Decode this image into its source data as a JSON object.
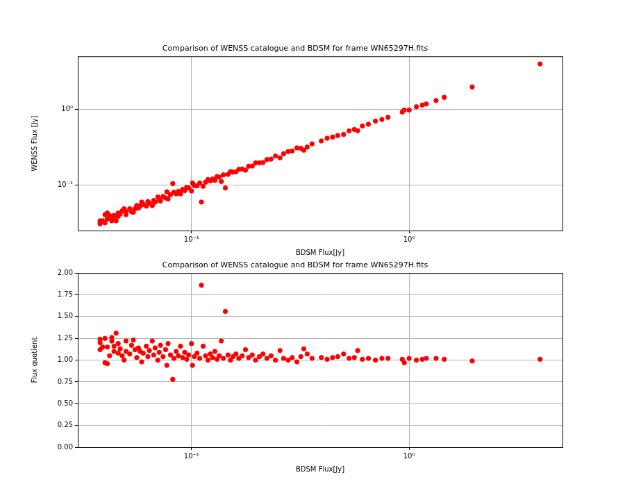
{
  "chart_data": [
    {
      "type": "scatter",
      "title": "Comparison of WENSS catalogue and BDSM for frame WN65297H.fits",
      "x_label": "BDSM Flux[Jy]",
      "y_label": "WENSS Flux [Jy]",
      "log": true,
      "grid": true,
      "color": "#ff0000",
      "marker": "circle",
      "xlim": [
        0.03,
        5.07
      ],
      "ylim": [
        0.0253,
        4.98
      ],
      "xticks": [
        {
          "value": 0.1,
          "label": "10⁻¹"
        },
        {
          "value": 1,
          "label": "10⁰"
        }
      ],
      "yticks": [
        {
          "value": 0.1,
          "label": "10⁻¹"
        },
        {
          "value": 1,
          "label": "10⁰"
        }
      ],
      "x": [
        0.038,
        0.038,
        0.038,
        0.039,
        0.04,
        0.04,
        0.041,
        0.041,
        0.042,
        0.043,
        0.043,
        0.044,
        0.044,
        0.045,
        0.046,
        0.046,
        0.047,
        0.048,
        0.049,
        0.05,
        0.05,
        0.052,
        0.053,
        0.054,
        0.055,
        0.056,
        0.057,
        0.058,
        0.059,
        0.06,
        0.062,
        0.063,
        0.064,
        0.066,
        0.067,
        0.068,
        0.07,
        0.071,
        0.072,
        0.074,
        0.076,
        0.077,
        0.078,
        0.08,
        0.082,
        0.083,
        0.085,
        0.087,
        0.089,
        0.091,
        0.093,
        0.095,
        0.097,
        0.1,
        0.101,
        0.103,
        0.106,
        0.109,
        0.111,
        0.113,
        0.116,
        0.119,
        0.122,
        0.125,
        0.128,
        0.131,
        0.134,
        0.137,
        0.14,
        0.143,
        0.147,
        0.151,
        0.155,
        0.16,
        0.165,
        0.171,
        0.177,
        0.183,
        0.19,
        0.197,
        0.205,
        0.213,
        0.222,
        0.232,
        0.243,
        0.255,
        0.265,
        0.278,
        0.29,
        0.305,
        0.318,
        0.328,
        0.34,
        0.358,
        0.395,
        0.42,
        0.445,
        0.47,
        0.5,
        0.53,
        0.56,
        0.58,
        0.61,
        0.65,
        0.7,
        0.75,
        0.8,
        0.93,
        0.95,
        1.0,
        1.08,
        1.15,
        1.2,
        1.33,
        1.45,
        1.95,
        4.0
      ],
      "values": [
        0.031,
        0.032,
        0.034,
        0.034,
        0.041,
        0.032,
        0.043,
        0.036,
        0.04,
        0.034,
        0.035,
        0.04,
        0.038,
        0.034,
        0.043,
        0.039,
        0.042,
        0.046,
        0.049,
        0.041,
        0.045,
        0.049,
        0.045,
        0.044,
        0.049,
        0.054,
        0.05,
        0.053,
        0.06,
        0.056,
        0.053,
        0.061,
        0.058,
        0.054,
        0.063,
        0.06,
        0.07,
        0.065,
        0.062,
        0.071,
        0.068,
        0.082,
        0.066,
        0.075,
        0.105,
        0.081,
        0.077,
        0.083,
        0.077,
        0.088,
        0.085,
        0.094,
        0.092,
        0.084,
        0.107,
        0.099,
        0.098,
        0.107,
        0.06,
        0.097,
        0.11,
        0.119,
        0.114,
        0.121,
        0.116,
        0.13,
        0.128,
        0.112,
        0.137,
        0.092,
        0.139,
        0.151,
        0.149,
        0.15,
        0.162,
        0.163,
        0.158,
        0.178,
        0.179,
        0.197,
        0.197,
        0.199,
        0.218,
        0.221,
        0.243,
        0.23,
        0.26,
        0.278,
        0.282,
        0.311,
        0.306,
        0.29,
        0.318,
        0.351,
        0.383,
        0.416,
        0.432,
        0.452,
        0.467,
        0.52,
        0.544,
        0.523,
        0.604,
        0.637,
        0.7,
        0.735,
        0.784,
        0.921,
        0.979,
        0.98,
        1.08,
        1.139,
        1.176,
        1.304,
        1.436,
        1.97,
        3.96
      ]
    },
    {
      "type": "scatter",
      "title": "Comparison of WENSS catalogue and BDSM for frame WN65297H.fits",
      "x_label": "BDSM Flux[Jy]",
      "y_label": "Flux quotient",
      "log": "x",
      "grid": true,
      "color": "#ff0000",
      "marker": "circle",
      "xlim": [
        0.03,
        5.07
      ],
      "ylim": [
        0,
        2
      ],
      "xticks": [
        {
          "value": 0.1,
          "label": "10⁻¹"
        },
        {
          "value": 1,
          "label": "10⁰"
        }
      ],
      "yticks": [
        {
          "value": 0,
          "label": "0.00"
        },
        {
          "value": 0.25,
          "label": "0.25"
        },
        {
          "value": 0.5,
          "label": "0.50"
        },
        {
          "value": 0.75,
          "label": "0.75"
        },
        {
          "value": 1,
          "label": "1.00"
        },
        {
          "value": 1.25,
          "label": "1.25"
        },
        {
          "value": 1.5,
          "label": "1.50"
        },
        {
          "value": 1.75,
          "label": "1.75"
        },
        {
          "value": 2,
          "label": "2.00"
        }
      ],
      "x": [
        0.038,
        0.038,
        0.038,
        0.039,
        0.04,
        0.04,
        0.041,
        0.041,
        0.042,
        0.043,
        0.043,
        0.044,
        0.044,
        0.045,
        0.046,
        0.046,
        0.047,
        0.048,
        0.049,
        0.05,
        0.05,
        0.052,
        0.053,
        0.054,
        0.055,
        0.056,
        0.057,
        0.058,
        0.059,
        0.06,
        0.062,
        0.063,
        0.064,
        0.066,
        0.067,
        0.068,
        0.07,
        0.071,
        0.072,
        0.074,
        0.076,
        0.077,
        0.078,
        0.08,
        0.082,
        0.083,
        0.085,
        0.087,
        0.089,
        0.091,
        0.093,
        0.095,
        0.097,
        0.1,
        0.101,
        0.103,
        0.106,
        0.109,
        0.111,
        0.113,
        0.116,
        0.119,
        0.122,
        0.125,
        0.128,
        0.131,
        0.134,
        0.137,
        0.14,
        0.143,
        0.147,
        0.151,
        0.155,
        0.16,
        0.165,
        0.171,
        0.177,
        0.183,
        0.19,
        0.197,
        0.205,
        0.213,
        0.222,
        0.232,
        0.243,
        0.255,
        0.265,
        0.278,
        0.29,
        0.305,
        0.318,
        0.328,
        0.34,
        0.358,
        0.395,
        0.42,
        0.445,
        0.47,
        0.5,
        0.53,
        0.56,
        0.58,
        0.61,
        0.65,
        0.7,
        0.75,
        0.8,
        0.93,
        0.95,
        1.0,
        1.08,
        1.15,
        1.2,
        1.33,
        1.45,
        1.95,
        4.0
      ],
      "values": [
        1.24,
        1.2,
        1.12,
        1.15,
        0.97,
        1.25,
        0.96,
        1.15,
        1.05,
        1.26,
        1.22,
        1.1,
        1.16,
        1.31,
        1.08,
        1.19,
        1.13,
        1.05,
        1.0,
        1.22,
        1.1,
        1.07,
        1.17,
        1.23,
        1.12,
        1.03,
        1.14,
        1.1,
        0.98,
        1.08,
        1.16,
        1.04,
        1.11,
        1.22,
        1.06,
        1.14,
        1.0,
        1.09,
        1.17,
        1.04,
        1.12,
        0.94,
        1.19,
        1.06,
        0.78,
        1.02,
        1.1,
        1.05,
        1.16,
        1.03,
        1.09,
        1.01,
        1.06,
        1.19,
        0.94,
        1.04,
        1.08,
        1.02,
        1.86,
        1.16,
        1.05,
        1.0,
        1.07,
        1.03,
        1.1,
        1.01,
        1.05,
        1.22,
        1.02,
        1.56,
        1.06,
        1.0,
        1.04,
        1.07,
        1.02,
        1.05,
        1.12,
        1.03,
        1.06,
        1.0,
        1.04,
        1.07,
        1.02,
        1.05,
        1.0,
        1.11,
        1.02,
        1.0,
        1.03,
        0.98,
        1.04,
        1.13,
        1.07,
        1.02,
        1.03,
        1.01,
        1.03,
        1.04,
        1.07,
        1.02,
        1.03,
        1.11,
        1.01,
        1.02,
        1.0,
        1.02,
        1.02,
        1.01,
        0.97,
        1.02,
        1.0,
        1.01,
        1.02,
        1.02,
        1.01,
        0.99,
        1.01
      ]
    }
  ]
}
